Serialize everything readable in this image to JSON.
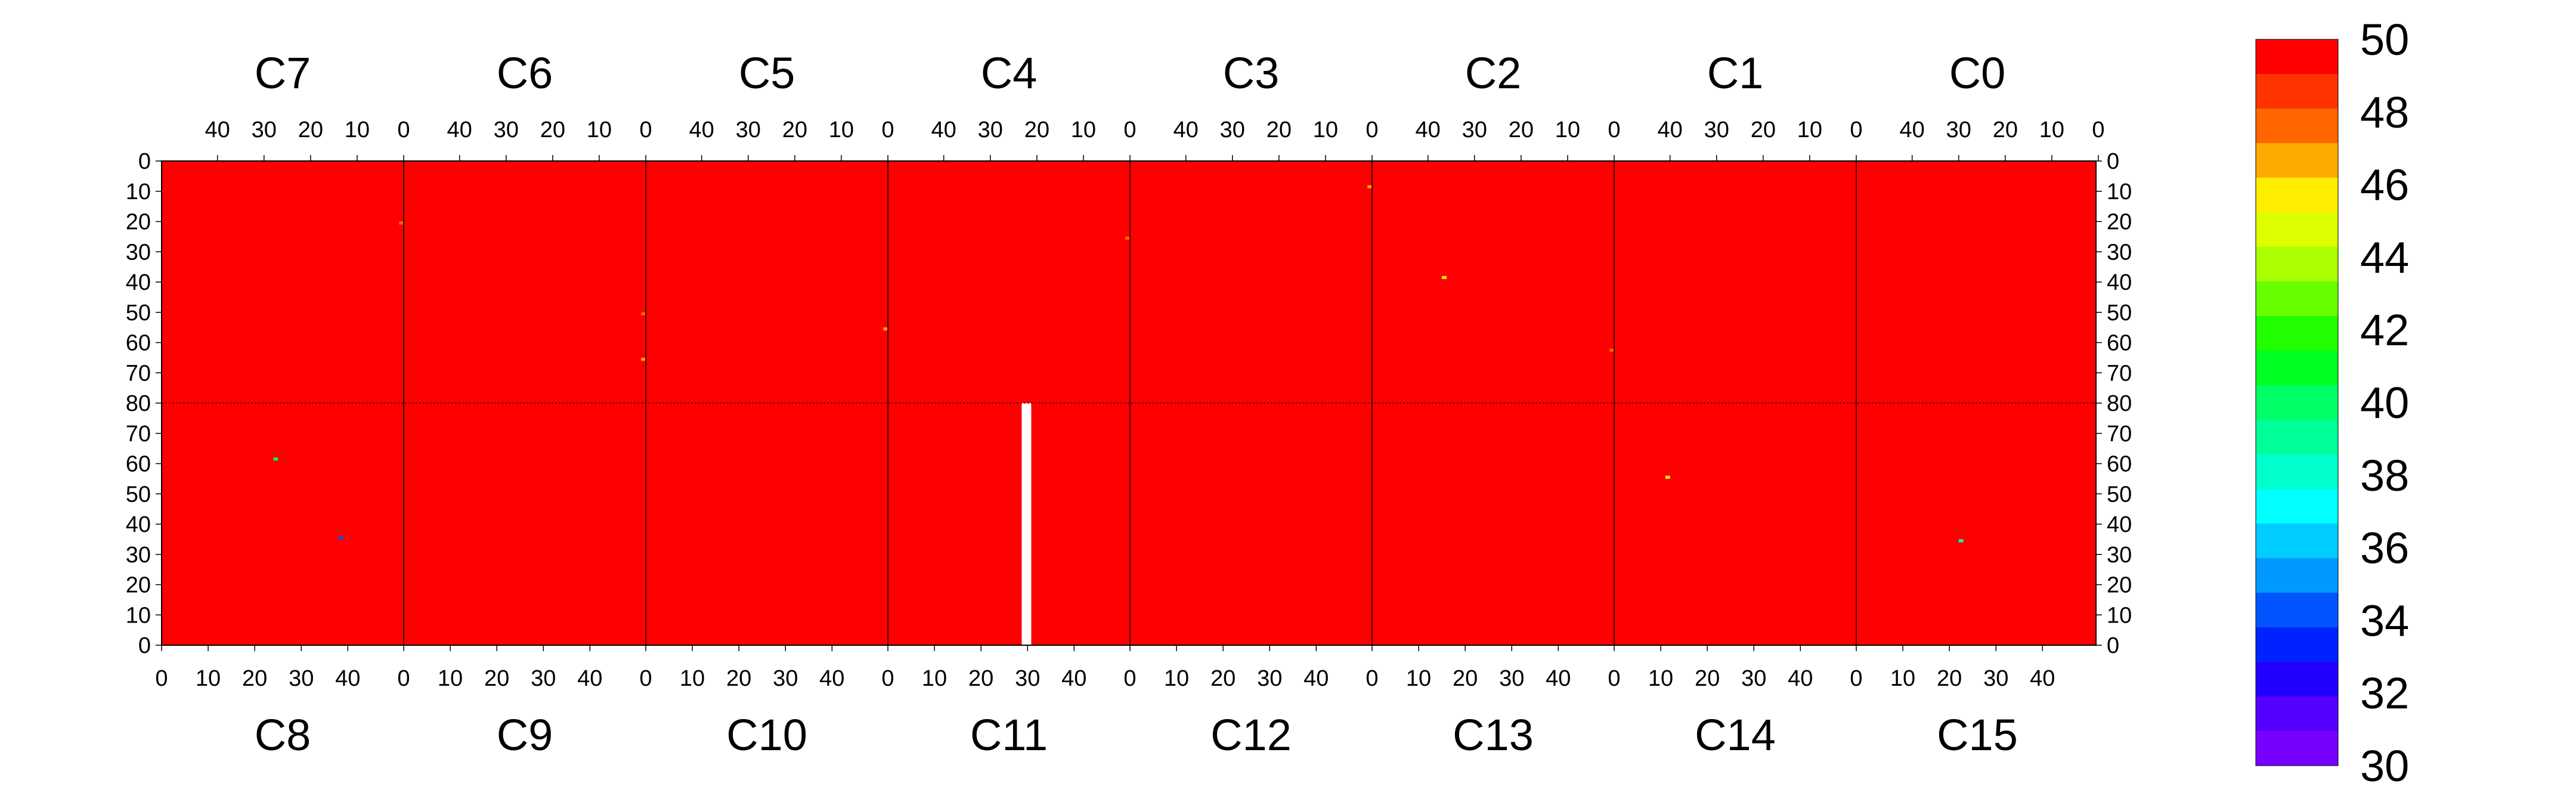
{
  "chart_data": {
    "type": "heatmap",
    "title": "",
    "xlabel": "",
    "ylabel": "",
    "colorbar": {
      "range": [
        30,
        50
      ],
      "step": 2,
      "tick_labels": [
        "50",
        "48",
        "46",
        "44",
        "42",
        "40",
        "38",
        "36",
        "34",
        "32",
        "30"
      ],
      "colors": [
        "#ff0000",
        "#ff3300",
        "#ff6600",
        "#ffaa00",
        "#ffee00",
        "#ddff00",
        "#aaff00",
        "#66ff00",
        "#22ff00",
        "#00ff22",
        "#00ff66",
        "#00ff99",
        "#00ffcc",
        "#00ffff",
        "#00ccff",
        "#0099ff",
        "#0055ff",
        "#0022ff",
        "#2200ff",
        "#5500ff",
        "#7700ff"
      ]
    },
    "top_chips": [
      "C7",
      "C6",
      "C5",
      "C4",
      "C3",
      "C2",
      "C1",
      "C0"
    ],
    "bottom_chips": [
      "C8",
      "C9",
      "C10",
      "C11",
      "C12",
      "C13",
      "C14",
      "C15"
    ],
    "top_x_ticks": [
      "40",
      "30",
      "20",
      "10",
      "0"
    ],
    "bottom_x_ticks": [
      "0",
      "10",
      "20",
      "30",
      "40"
    ],
    "top_y_ticks": [
      "0",
      "10",
      "20",
      "30",
      "40",
      "50",
      "60",
      "70",
      "80"
    ],
    "bottom_y_ticks": [
      "80",
      "70",
      "60",
      "50",
      "40",
      "30",
      "20",
      "10",
      "0"
    ],
    "columns_per_chip": 52,
    "rows_per_chip": 80,
    "background_value": 50,
    "dead_column": {
      "chip": "C11",
      "column": 29,
      "value": null
    },
    "noisy_pixels": [
      {
        "chip": "C7",
        "col": 0,
        "row": 20,
        "value": 48
      },
      {
        "chip": "C6",
        "col": 0,
        "row": 50,
        "value": 48
      },
      {
        "chip": "C6",
        "col": 0,
        "row": 65,
        "value": 47
      },
      {
        "chip": "C5",
        "col": 0,
        "row": 55,
        "value": 47
      },
      {
        "chip": "C4",
        "col": 0,
        "row": 25,
        "value": 48
      },
      {
        "chip": "C3",
        "col": 0,
        "row": 8,
        "value": 47
      },
      {
        "chip": "C2",
        "col": 0,
        "row": 62,
        "value": 48
      },
      {
        "chip": "C2",
        "col": 36,
        "row": 38,
        "value": 45
      },
      {
        "chip": "C8",
        "col": 24,
        "row": 61,
        "value": 40
      },
      {
        "chip": "C8",
        "col": 38,
        "row": 35,
        "value": 34
      },
      {
        "chip": "C14",
        "col": 11,
        "row": 55,
        "value": 46
      },
      {
        "chip": "C15",
        "col": 22,
        "row": 34,
        "value": 38
      }
    ]
  }
}
